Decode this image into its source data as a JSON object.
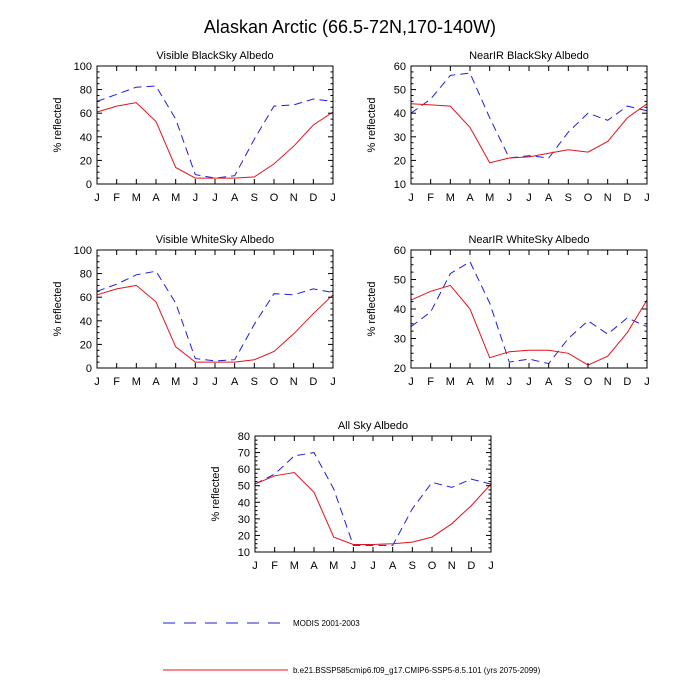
{
  "page_title": "Alaskan Arctic (66.5-72N,170-140W)",
  "colors": {
    "modis": "#1f1fd6",
    "model": "#e0141e",
    "axis": "#000000"
  },
  "legend": [
    {
      "label": "MODIS 2001-2003",
      "style": "dashed",
      "color": "#1f1fd6"
    },
    {
      "label": "b.e21.BSSP585cmip6.f09_g17.CMIP6-SSP5-8.5.101 (yrs 2075-2099)",
      "style": "solid",
      "color": "#e0141e"
    }
  ],
  "chart_data": [
    {
      "type": "line",
      "title": "Visible BlackSky Albedo",
      "ylabel": "% reflected",
      "categories": [
        "J",
        "F",
        "M",
        "A",
        "M",
        "J",
        "J",
        "A",
        "S",
        "O",
        "N",
        "D",
        "J"
      ],
      "ylim": [
        0,
        100
      ],
      "yticks": [
        0,
        20,
        40,
        60,
        80,
        100
      ],
      "series": [
        {
          "values": [
            70,
            76,
            82,
            83,
            55,
            8,
            5,
            7,
            38,
            66,
            67,
            72,
            70
          ]
        },
        {
          "values": [
            61,
            66,
            69,
            53,
            14,
            5,
            5,
            5,
            6,
            17,
            32,
            50,
            61
          ]
        }
      ]
    },
    {
      "type": "line",
      "title": "NearIR BlackSky Albedo",
      "ylabel": "% reflected",
      "categories": [
        "J",
        "F",
        "M",
        "A",
        "M",
        "J",
        "J",
        "A",
        "S",
        "O",
        "N",
        "D",
        "J"
      ],
      "ylim": [
        10,
        60
      ],
      "yticks": [
        10,
        20,
        30,
        40,
        50,
        60
      ],
      "series": [
        {
          "values": [
            40,
            46,
            56,
            57,
            38,
            21,
            22,
            21,
            32,
            40,
            37,
            43,
            41
          ]
        },
        {
          "values": [
            44,
            43.5,
            43,
            34,
            19,
            21,
            21.5,
            23,
            24.5,
            23.5,
            28,
            38,
            44
          ]
        }
      ]
    },
    {
      "type": "line",
      "title": "Visible WhiteSky Albedo",
      "ylabel": "% reflected",
      "categories": [
        "J",
        "F",
        "M",
        "A",
        "M",
        "J",
        "J",
        "A",
        "S",
        "O",
        "N",
        "D",
        "J"
      ],
      "ylim": [
        0,
        100
      ],
      "yticks": [
        0,
        20,
        40,
        60,
        80,
        100
      ],
      "series": [
        {
          "values": [
            65,
            71,
            79,
            82,
            55,
            8,
            6,
            7,
            37,
            63,
            62,
            67,
            64
          ]
        },
        {
          "values": [
            62,
            67,
            70,
            56,
            18,
            5,
            5,
            5,
            7,
            14,
            29,
            46,
            62
          ]
        }
      ]
    },
    {
      "type": "line",
      "title": "NearIR WhiteSky Albedo",
      "ylabel": "% reflected",
      "categories": [
        "J",
        "F",
        "M",
        "A",
        "M",
        "J",
        "J",
        "A",
        "S",
        "O",
        "N",
        "D",
        "J"
      ],
      "ylim": [
        20,
        60
      ],
      "yticks": [
        20,
        30,
        40,
        50,
        60
      ],
      "series": [
        {
          "values": [
            34,
            39,
            52,
            56,
            42,
            22,
            23,
            21.5,
            30,
            36,
            31.5,
            37,
            34
          ]
        },
        {
          "values": [
            43,
            46,
            48,
            40,
            23.5,
            25.5,
            26,
            26,
            25,
            21,
            24,
            32,
            43
          ]
        }
      ]
    },
    {
      "type": "line",
      "title": "All Sky Albedo",
      "ylabel": "% reflected",
      "categories": [
        "J",
        "F",
        "M",
        "A",
        "M",
        "J",
        "J",
        "A",
        "S",
        "O",
        "N",
        "D",
        "J"
      ],
      "ylim": [
        10,
        80
      ],
      "yticks": [
        10,
        20,
        30,
        40,
        50,
        60,
        70,
        80
      ],
      "series": [
        {
          "values": [
            51,
            57,
            68,
            70,
            48,
            14,
            14,
            14,
            36,
            52,
            49,
            54,
            51
          ]
        },
        {
          "values": [
            51,
            56,
            58,
            46,
            19,
            14.5,
            14.5,
            15,
            16,
            19,
            27,
            38,
            51
          ]
        }
      ]
    }
  ]
}
